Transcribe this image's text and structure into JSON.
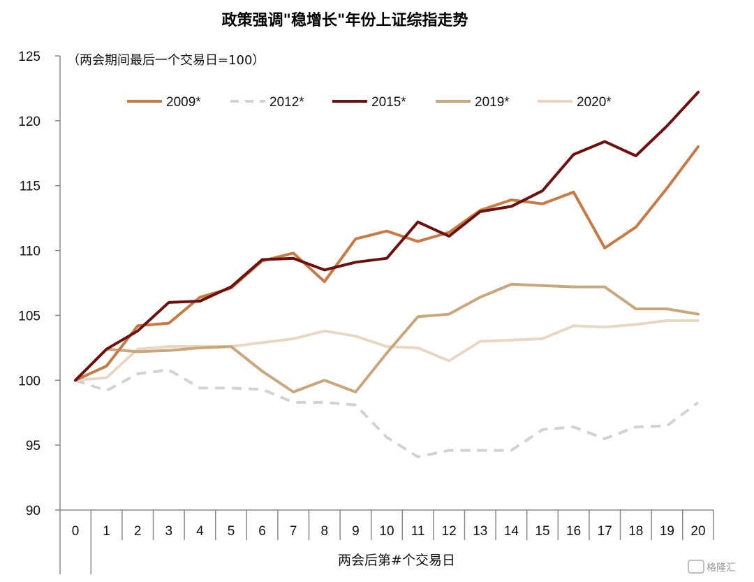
{
  "chart_data": {
    "type": "line",
    "title": "政策强调\"稳增长\"年份上证综指走势",
    "note": "（两会期间最后一个交易日=100）",
    "xlabel": "两会后第#个交易日",
    "ylabel": "",
    "x": [
      0,
      1,
      2,
      3,
      4,
      5,
      6,
      7,
      8,
      9,
      10,
      11,
      12,
      13,
      14,
      15,
      16,
      17,
      18,
      19,
      20
    ],
    "ylim": [
      90,
      125
    ],
    "yticks": [
      90,
      95,
      100,
      105,
      110,
      115,
      120,
      125
    ],
    "grid": false,
    "legend_position": "top",
    "series": [
      {
        "name": "2009*",
        "color": "#C87A45",
        "dash": false,
        "values": [
          100,
          101.1,
          104.2,
          104.4,
          106.4,
          107.1,
          109.2,
          109.8,
          107.6,
          110.9,
          111.5,
          110.7,
          111.4,
          113.1,
          113.9,
          113.6,
          114.5,
          110.2,
          111.8,
          114.8,
          118.0
        ]
      },
      {
        "name": "2012*",
        "color": "#D2D2D2",
        "dash": true,
        "values": [
          100,
          99.2,
          100.5,
          100.8,
          99.4,
          99.4,
          99.3,
          98.3,
          98.3,
          98.1,
          95.6,
          94.1,
          94.6,
          94.6,
          94.6,
          96.2,
          96.4,
          95.5,
          96.4,
          96.5,
          98.3
        ]
      },
      {
        "name": "2015*",
        "color": "#6B0F0F",
        "dash": false,
        "values": [
          100,
          102.4,
          103.8,
          106.0,
          106.1,
          107.2,
          109.3,
          109.4,
          108.5,
          109.1,
          109.4,
          112.2,
          111.1,
          113.0,
          113.4,
          114.6,
          117.4,
          118.4,
          117.3,
          119.6,
          122.2
        ]
      },
      {
        "name": "2019*",
        "color": "#C9A77C",
        "dash": false,
        "values": [
          100,
          102.4,
          102.2,
          102.3,
          102.5,
          102.6,
          100.7,
          99.1,
          100.0,
          99.1,
          102.1,
          104.9,
          105.1,
          106.4,
          107.4,
          107.3,
          107.2,
          107.2,
          105.5,
          105.5,
          105.1
        ]
      },
      {
        "name": "2020*",
        "color": "#E8D7C2",
        "dash": false,
        "values": [
          100,
          100.2,
          102.4,
          102.6,
          102.6,
          102.6,
          102.9,
          103.2,
          103.8,
          103.4,
          102.6,
          102.5,
          101.5,
          103.0,
          103.1,
          103.2,
          104.2,
          104.1,
          104.3,
          104.6,
          104.6
        ]
      }
    ]
  },
  "watermark": "格隆汇"
}
